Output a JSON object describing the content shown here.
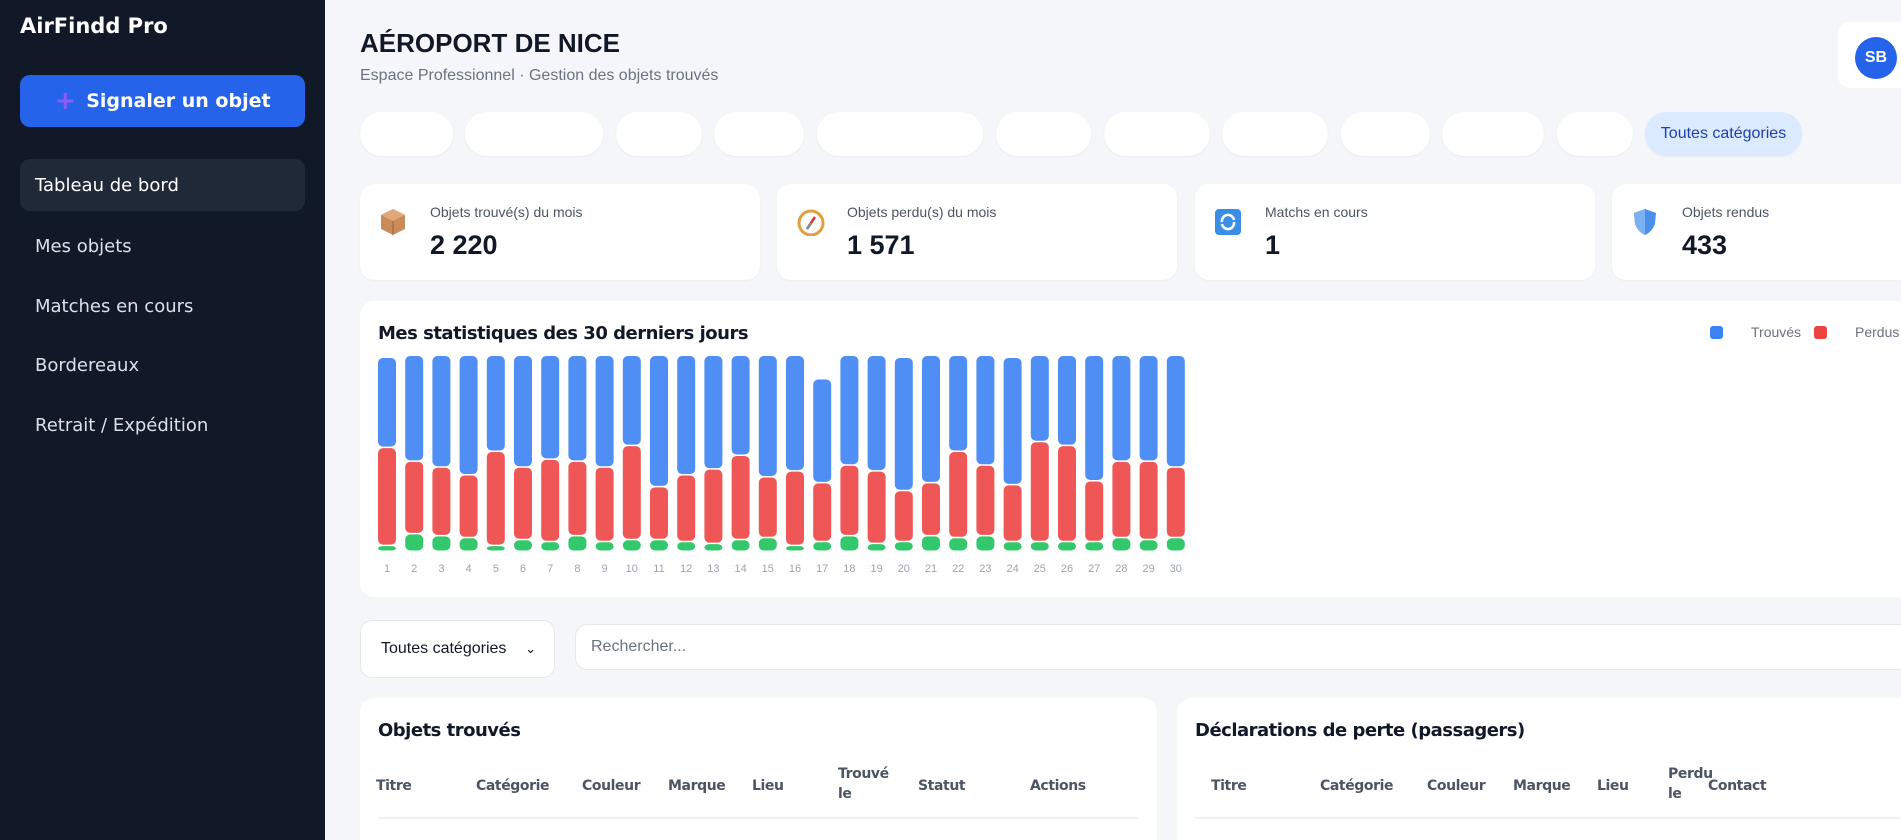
{
  "sidebar": {
    "brand": "AirFindd Pro",
    "report_button": "Signaler un objet",
    "items": [
      {
        "label": "Tableau de bord",
        "active": true
      },
      {
        "label": "Mes objets"
      },
      {
        "label": "Matches en cours"
      },
      {
        "label": "Bordereaux"
      },
      {
        "label": "Retrait / Expédition"
      }
    ]
  },
  "header": {
    "title": "AÉROPORT DE NICE",
    "subtitle": "Espace Professionnel · Gestion des objets trouvés",
    "avatar": "SB"
  },
  "chips": {
    "active_label": "Toutes catégories"
  },
  "stats": [
    {
      "label": "Objets trouvé(s) du mois",
      "value": "2 220",
      "icon": "package-icon"
    },
    {
      "label": "Objets perdu(s) du mois",
      "value": "1 571",
      "icon": "compass-icon"
    },
    {
      "label": "Matchs en cours",
      "value": "1",
      "icon": "refresh-icon"
    },
    {
      "label": "Objets rendus",
      "value": "433",
      "icon": "shield-icon"
    }
  ],
  "chart_data": {
    "type": "bar",
    "stacked": true,
    "title": "Mes statistiques des 30 derniers jours",
    "categories": [
      "1",
      "2",
      "3",
      "4",
      "5",
      "6",
      "7",
      "8",
      "9",
      "10",
      "11",
      "12",
      "13",
      "14",
      "15",
      "16",
      "17",
      "18",
      "19",
      "20",
      "21",
      "22",
      "23",
      "24",
      "25",
      "26",
      "27",
      "28",
      "29",
      "30"
    ],
    "legend_position": "top-right",
    "grid": false,
    "series": [
      {
        "name": "Trouvés",
        "color": "#4f8ff5",
        "values": [
          46,
          54,
          57,
          61,
          49,
          57,
          53,
          54,
          57,
          46,
          67,
          61,
          58,
          51,
          62,
          59,
          53,
          56,
          59,
          68,
          65,
          49,
          56,
          65,
          44,
          46,
          64,
          54,
          54,
          57
        ]
      },
      {
        "name": "Perdus",
        "color": "#ef5757",
        "values": [
          50,
          37,
          35,
          32,
          48,
          37,
          42,
          38,
          38,
          48,
          27,
          34,
          38,
          43,
          31,
          38,
          30,
          36,
          37,
          26,
          27,
          44,
          36,
          29,
          51,
          49,
          31,
          39,
          40,
          36
        ]
      },
      {
        "values": [
          3,
          9,
          8,
          7,
          3,
          6,
          5,
          8,
          5,
          6,
          6,
          5,
          4,
          6,
          7,
          3,
          5,
          8,
          4,
          5,
          8,
          7,
          8,
          5,
          5,
          5,
          5,
          7,
          6,
          7
        ],
        "color": "#34c86c"
      }
    ]
  },
  "filters": {
    "category": "Toutes catégories",
    "search_placeholder": "Rechercher..."
  },
  "found_table": {
    "title": "Objets trouvés",
    "columns": [
      "Titre",
      "Catégorie",
      "Couleur",
      "Marque",
      "Lieu",
      "Trouvé le",
      "Statut",
      "Actions"
    ]
  },
  "lost_table": {
    "title": "Déclarations de perte (passagers)",
    "columns": [
      "Titre",
      "Catégorie",
      "Couleur",
      "Marque",
      "Lieu",
      "Perdu le",
      "Contact"
    ]
  }
}
